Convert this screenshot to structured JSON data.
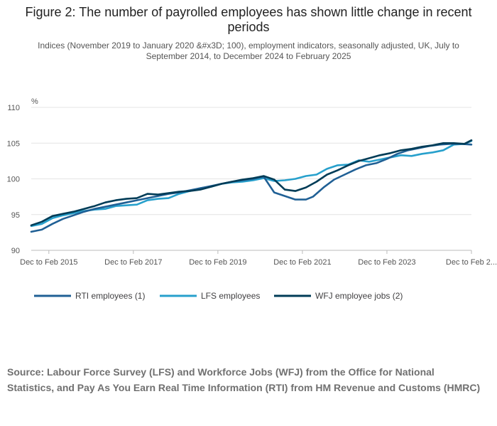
{
  "title": "Figure 2: The number of payrolled employees has shown little change in recent periods",
  "subtitle": "Indices (November 2019 to January 2020 &#x3D; 100), employment indicators, seasonally adjusted, UK, July to September 2014, to December 2024 to February 2025",
  "source": "Source: Labour Force Survey (LFS) and Workforce Jobs (WFJ) from the Office for National Statistics, and Pay As You Earn Real Time Information (RTI) from HM Revenue and Customs (HMRC)",
  "colors": {
    "rti": "#206095",
    "lfs": "#27a0cc",
    "wfj": "#003c57",
    "grid": "#e4e4e4",
    "axis": "#bbbbbb",
    "tick_text": "#555555"
  },
  "chart_data": {
    "type": "line",
    "title": "Figure 2: The number of payrolled employees has shown little change in recent periods",
    "ylabel": "%",
    "xlabel": "",
    "ylim": [
      90,
      110
    ],
    "yticks": [
      90,
      95,
      100,
      105,
      110
    ],
    "xlim": [
      "2014-08",
      "2025-01"
    ],
    "x_ticks": [
      {
        "x": "2015-01",
        "label": "Dec to Feb 2015"
      },
      {
        "x": "2017-01",
        "label": "Dec to Feb 2017"
      },
      {
        "x": "2019-01",
        "label": "Dec to Feb 2019"
      },
      {
        "x": "2021-01",
        "label": "Dec to Feb 2021"
      },
      {
        "x": "2023-01",
        "label": "Dec to Feb 2023"
      },
      {
        "x": "2025-01",
        "label": "Dec to Feb 2..."
      }
    ],
    "grid": true,
    "legend_position": "bottom-left",
    "series": [
      {
        "name": "RTI employees (1)",
        "color": "#206095",
        "points": [
          [
            "2014-08",
            92.6
          ],
          [
            "2014-11",
            92.9
          ],
          [
            "2015-02",
            93.7
          ],
          [
            "2015-05",
            94.4
          ],
          [
            "2015-08",
            94.9
          ],
          [
            "2015-11",
            95.4
          ],
          [
            "2016-02",
            95.8
          ],
          [
            "2016-05",
            96.1
          ],
          [
            "2016-08",
            96.4
          ],
          [
            "2016-11",
            96.7
          ],
          [
            "2017-02",
            97.0
          ],
          [
            "2017-05",
            97.3
          ],
          [
            "2017-08",
            97.6
          ],
          [
            "2017-11",
            97.9
          ],
          [
            "2018-02",
            98.1
          ],
          [
            "2018-05",
            98.4
          ],
          [
            "2018-08",
            98.7
          ],
          [
            "2018-11",
            99.0
          ],
          [
            "2019-02",
            99.3
          ],
          [
            "2019-05",
            99.6
          ],
          [
            "2019-08",
            99.8
          ],
          [
            "2019-11",
            100.0
          ],
          [
            "2020-02",
            100.3
          ],
          [
            "2020-05",
            98.1
          ],
          [
            "2020-08",
            97.6
          ],
          [
            "2020-11",
            97.1
          ],
          [
            "2021-02",
            97.1
          ],
          [
            "2021-04",
            97.5
          ],
          [
            "2021-07",
            98.8
          ],
          [
            "2021-10",
            99.9
          ],
          [
            "2022-01",
            100.6
          ],
          [
            "2022-04",
            101.3
          ],
          [
            "2022-07",
            101.9
          ],
          [
            "2022-10",
            102.2
          ],
          [
            "2023-01",
            102.8
          ],
          [
            "2023-04",
            103.5
          ],
          [
            "2023-07",
            104.0
          ],
          [
            "2023-10",
            104.3
          ],
          [
            "2024-01",
            104.6
          ],
          [
            "2024-04",
            104.8
          ],
          [
            "2024-07",
            104.9
          ],
          [
            "2024-10",
            104.9
          ],
          [
            "2025-01",
            104.8
          ]
        ]
      },
      {
        "name": "LFS employees",
        "color": "#27a0cc",
        "points": [
          [
            "2014-08",
            93.4
          ],
          [
            "2014-11",
            93.7
          ],
          [
            "2015-02",
            94.5
          ],
          [
            "2015-05",
            94.9
          ],
          [
            "2015-08",
            95.2
          ],
          [
            "2015-11",
            95.5
          ],
          [
            "2016-02",
            95.7
          ],
          [
            "2016-05",
            95.8
          ],
          [
            "2016-08",
            96.2
          ],
          [
            "2016-11",
            96.3
          ],
          [
            "2017-02",
            96.4
          ],
          [
            "2017-05",
            97.0
          ],
          [
            "2017-08",
            97.2
          ],
          [
            "2017-11",
            97.3
          ],
          [
            "2018-02",
            97.9
          ],
          [
            "2018-05",
            98.3
          ],
          [
            "2018-08",
            98.7
          ],
          [
            "2018-11",
            98.9
          ],
          [
            "2019-02",
            99.3
          ],
          [
            "2019-05",
            99.5
          ],
          [
            "2019-08",
            99.6
          ],
          [
            "2019-11",
            99.8
          ],
          [
            "2020-02",
            100.1
          ],
          [
            "2020-05",
            99.7
          ],
          [
            "2020-08",
            99.8
          ],
          [
            "2020-11",
            100.0
          ],
          [
            "2021-02",
            100.4
          ],
          [
            "2021-05",
            100.6
          ],
          [
            "2021-08",
            101.4
          ],
          [
            "2021-11",
            101.9
          ],
          [
            "2022-02",
            102.0
          ],
          [
            "2022-05",
            102.6
          ],
          [
            "2022-08",
            102.4
          ],
          [
            "2022-11",
            102.7
          ],
          [
            "2023-02",
            103.0
          ],
          [
            "2023-05",
            103.3
          ],
          [
            "2023-08",
            103.2
          ],
          [
            "2023-11",
            103.5
          ],
          [
            "2024-02",
            103.7
          ],
          [
            "2024-05",
            104.0
          ],
          [
            "2024-08",
            104.8
          ],
          [
            "2024-11",
            104.9
          ],
          [
            "2025-01",
            105.3
          ]
        ]
      },
      {
        "name": "WFJ employee jobs (2)",
        "color": "#003c57",
        "points": [
          [
            "2014-08",
            93.5
          ],
          [
            "2014-11",
            94.0
          ],
          [
            "2015-02",
            94.8
          ],
          [
            "2015-05",
            95.1
          ],
          [
            "2015-08",
            95.4
          ],
          [
            "2015-11",
            95.8
          ],
          [
            "2016-02",
            96.2
          ],
          [
            "2016-05",
            96.7
          ],
          [
            "2016-08",
            97.0
          ],
          [
            "2016-11",
            97.2
          ],
          [
            "2017-02",
            97.3
          ],
          [
            "2017-05",
            97.9
          ],
          [
            "2017-08",
            97.8
          ],
          [
            "2017-11",
            98.0
          ],
          [
            "2018-02",
            98.2
          ],
          [
            "2018-05",
            98.3
          ],
          [
            "2018-08",
            98.5
          ],
          [
            "2018-11",
            98.9
          ],
          [
            "2019-02",
            99.3
          ],
          [
            "2019-05",
            99.6
          ],
          [
            "2019-08",
            99.9
          ],
          [
            "2019-11",
            100.1
          ],
          [
            "2020-02",
            100.4
          ],
          [
            "2020-05",
            99.9
          ],
          [
            "2020-08",
            98.5
          ],
          [
            "2020-11",
            98.3
          ],
          [
            "2021-02",
            98.8
          ],
          [
            "2021-05",
            99.6
          ],
          [
            "2021-08",
            100.6
          ],
          [
            "2021-11",
            101.2
          ],
          [
            "2022-02",
            101.9
          ],
          [
            "2022-05",
            102.5
          ],
          [
            "2022-08",
            102.9
          ],
          [
            "2022-11",
            103.3
          ],
          [
            "2023-02",
            103.6
          ],
          [
            "2023-05",
            104.0
          ],
          [
            "2023-08",
            104.2
          ],
          [
            "2023-11",
            104.5
          ],
          [
            "2024-02",
            104.7
          ],
          [
            "2024-05",
            105.0
          ],
          [
            "2024-08",
            105.0
          ],
          [
            "2024-11",
            104.9
          ],
          [
            "2025-01",
            105.4
          ]
        ]
      }
    ]
  }
}
